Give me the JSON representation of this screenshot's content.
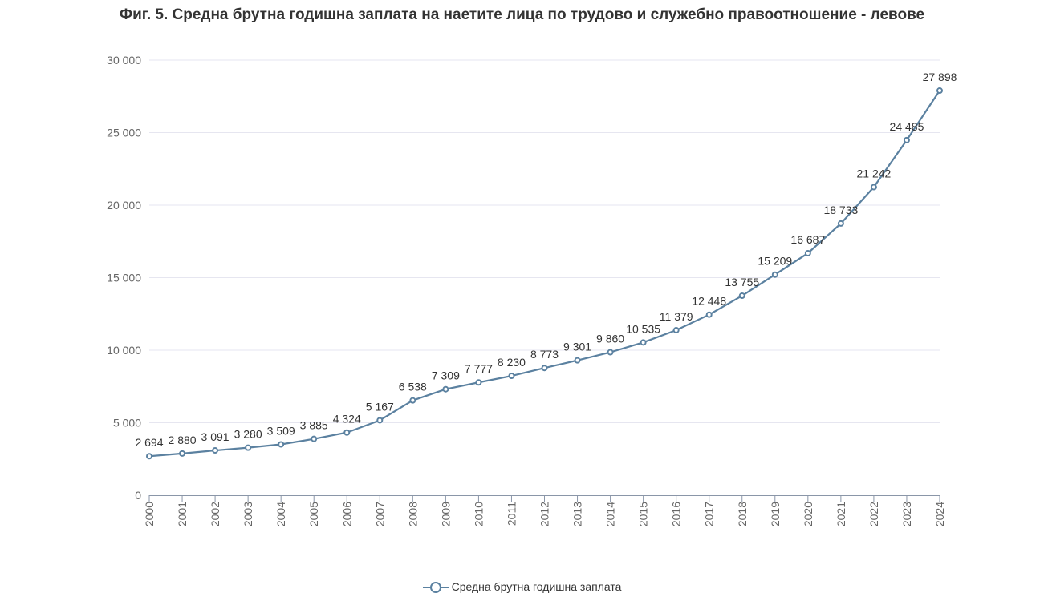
{
  "chart_data": {
    "type": "line",
    "title": "Фиг. 5. Средна брутна годишна заплата на наетите лица по трудово и служебно правоотношение - левове",
    "xlabel": "",
    "ylabel": "",
    "ylim": [
      0,
      30000
    ],
    "yticks": [
      "0",
      "5 000",
      "10 000",
      "15 000",
      "20 000",
      "25 000",
      "30 000"
    ],
    "ytick_values": [
      0,
      5000,
      10000,
      15000,
      20000,
      25000,
      30000
    ],
    "grid": true,
    "legend_position": "bottom-center",
    "categories": [
      "2000",
      "2001",
      "2002",
      "2003",
      "2004",
      "2005",
      "2006",
      "2007",
      "2008",
      "2009",
      "2010",
      "2011",
      "2012",
      "2013",
      "2014",
      "2015",
      "2016",
      "2017",
      "2018",
      "2019",
      "2020",
      "2021",
      "2022",
      "2023",
      "2024"
    ],
    "series": [
      {
        "name": "Средна брутна годишна заплата",
        "color": "#5b81a0",
        "values": [
          2694,
          2880,
          3091,
          3280,
          3509,
          3885,
          4324,
          5167,
          6538,
          7309,
          7777,
          8230,
          8773,
          9301,
          9860,
          10535,
          11379,
          12448,
          13755,
          15209,
          16687,
          18733,
          21242,
          24485,
          27898
        ],
        "labels": [
          "2 694",
          "2 880",
          "3 091",
          "3 280",
          "3 509",
          "3 885",
          "4 324",
          "5 167",
          "6 538",
          "7 309",
          "7 777",
          "8 230",
          "8 773",
          "9 301",
          "9 860",
          "10 535",
          "11 379",
          "12 448",
          "13 755",
          "15 209",
          "16 687",
          "18 733",
          "21 242",
          "24 485",
          "27 898"
        ]
      }
    ]
  }
}
